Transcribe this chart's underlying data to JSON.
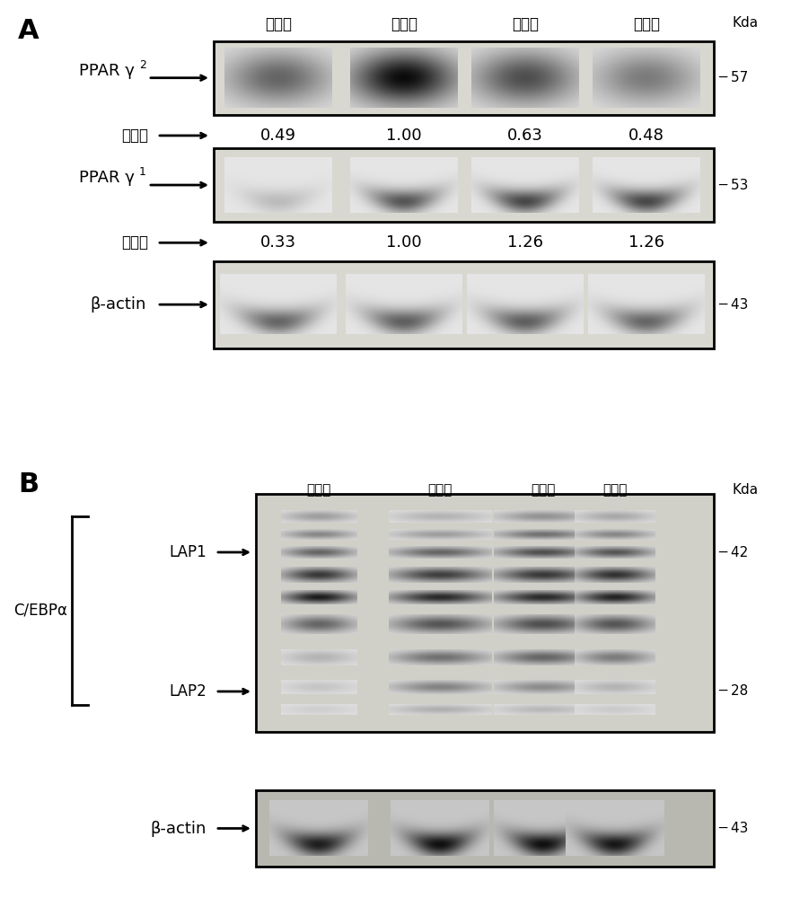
{
  "bg_color": "#ffffff",
  "panel_A": {
    "title": "A",
    "col_labels": [
      "第一组",
      "第二组",
      "第三组",
      "第四组"
    ],
    "kda_label": "Kda",
    "ppar2_values": [
      "0.49",
      "1.00",
      "0.63",
      "0.48"
    ],
    "ppar1_values": [
      "0.33",
      "1.00",
      "1.26",
      "1.26"
    ],
    "ppar2_kda": "57",
    "ppar1_kda": "53",
    "actin_kda_A": "43",
    "biaoxi_label": "表现量",
    "ppar2_label": "PPAR γ",
    "ppar2_sub": "2",
    "ppar1_label": "PPAR γ",
    "ppar1_sub": "1",
    "actin_label_A": "β-actin"
  },
  "panel_B": {
    "title": "B",
    "col_labels_4": [
      "第一组",
      "第二组",
      "第三组",
      "第四组"
    ],
    "kda_label": "Kda",
    "kda_42": "42",
    "kda_28": "28",
    "kda_43": "43",
    "cebp_label": "C/EBPα",
    "lap1_label": "LAP1",
    "lap2_label": "LAP2",
    "actin_label": "β-actin"
  }
}
